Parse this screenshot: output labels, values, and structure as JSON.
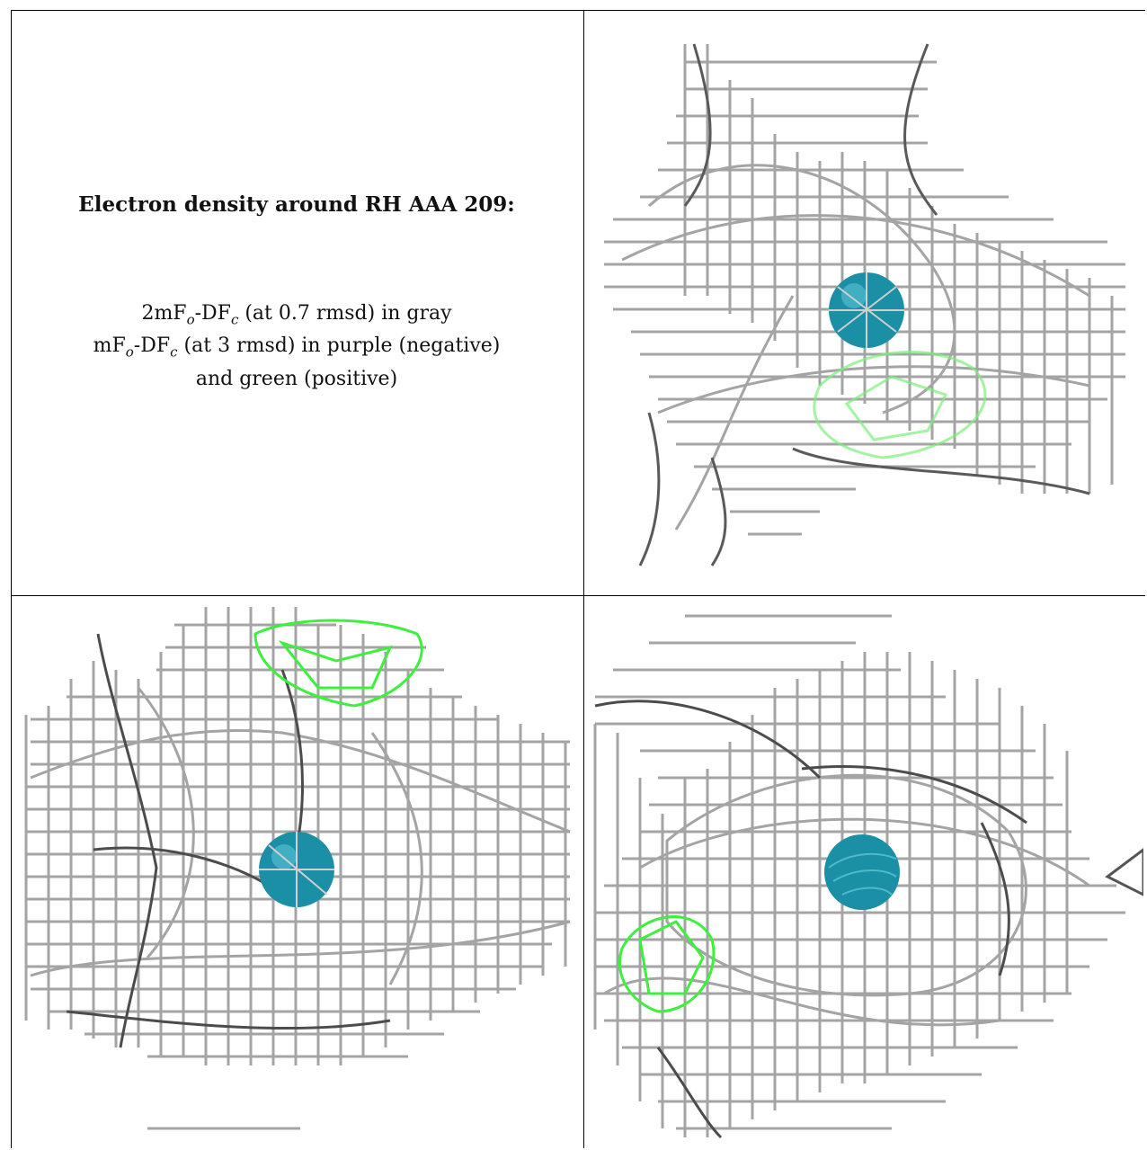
{
  "caption": {
    "title": "Electron density around RH AAA 209:",
    "line1": "2mF",
    "line1_sub1": "o",
    "line1_mid": "-DF",
    "line1_sub2": "c",
    "line1_rest": " (at 0.7 rmsd) in gray",
    "line2": "mF",
    "line2_sub1": "o",
    "line2_mid": "-DF",
    "line2_sub2": "c",
    "line2_rest": " (at 3 rmsd) in purple (negative)",
    "line3": "and green (positive)"
  },
  "colors": {
    "mesh_gray": "#9a9a9a",
    "mesh_dark": "#555555",
    "positive_green": "#3cf03c",
    "atom_teal": "#1b8fa6"
  },
  "panels": [
    {
      "name": "view-top-right",
      "atom": "rhodium-atom-sphere"
    },
    {
      "name": "view-bottom-left",
      "atom": "rhodium-atom-sphere"
    },
    {
      "name": "view-bottom-right",
      "atom": "rhodium-atom-sphere"
    }
  ]
}
